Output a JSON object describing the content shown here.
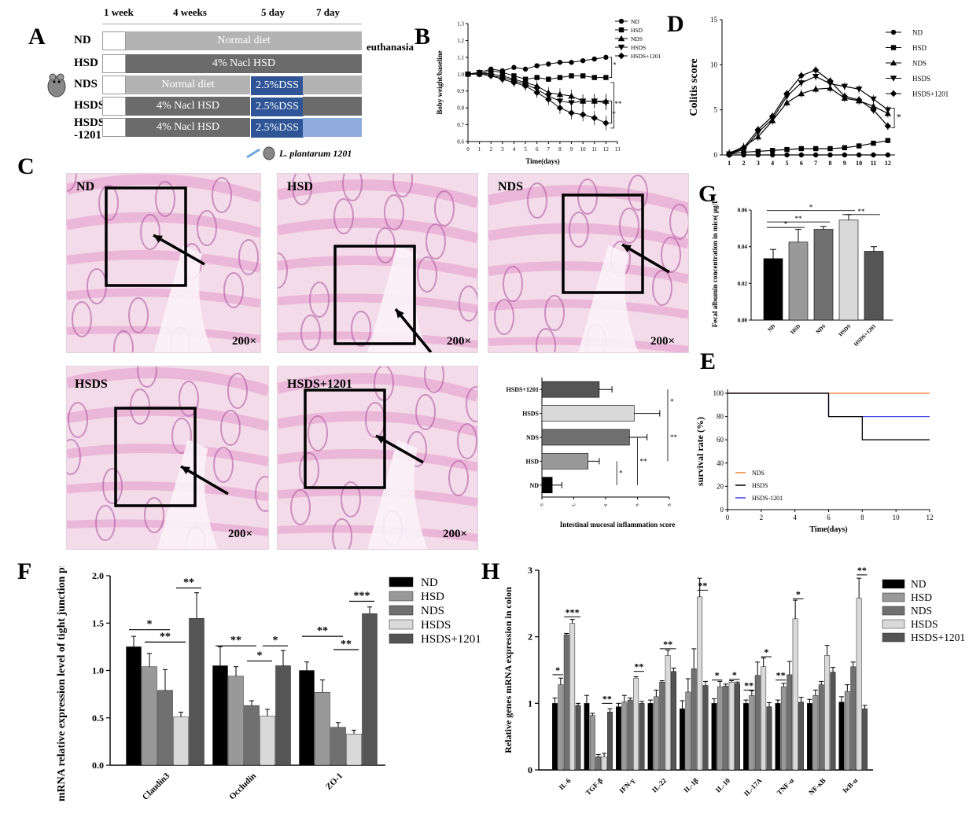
{
  "panels": {
    "A": "A",
    "B": "B",
    "C": "C",
    "D": "D",
    "E": "E",
    "F": "F",
    "G": "G",
    "H": "H"
  },
  "colors": {
    "light_gray": "#b3b3b3",
    "dark_gray": "#6b6b6b",
    "dss_blue": "#2f5597",
    "l_blue": "#8faadc",
    "tissue_pink": "#d98cc4",
    "tissue_bg": "#f3dbe9"
  },
  "panelA": {
    "phases": [
      "1 week",
      "4 weeks",
      "5 day",
      "7 day"
    ],
    "end_label": "euthanasia",
    "footnote": "L. plantarum 1201",
    "groups": [
      {
        "name": "ND",
        "bars": [
          {
            "text": "Normal diet",
            "color": "light"
          }
        ]
      },
      {
        "name": "HSD",
        "bars": [
          {
            "text": "4% Nacl HSD",
            "color": "dark"
          }
        ]
      },
      {
        "name": "NDS",
        "bars": [
          {
            "text": "Normal diet",
            "color": "light"
          },
          {
            "text": "2.5%DSS",
            "color": "dss"
          },
          {
            "text": "",
            "color": "light"
          }
        ]
      },
      {
        "name": "HSDS",
        "bars": [
          {
            "text": "4% Nacl HSD",
            "color": "dark"
          },
          {
            "text": "2.5%DSS",
            "color": "dss"
          },
          {
            "text": "",
            "color": "dark"
          }
        ]
      },
      {
        "name": "HSDS\n-1201",
        "bars": [
          {
            "text": "4% Nacl HSD",
            "color": "dark"
          },
          {
            "text": "2.5%DSS",
            "color": "dss"
          },
          {
            "text": "",
            "color": "lb"
          }
        ]
      }
    ]
  },
  "panelC": {
    "images": [
      {
        "label": "ND",
        "mag": "200×"
      },
      {
        "label": "HSD",
        "mag": "200×"
      },
      {
        "label": "NDS",
        "mag": "200×"
      },
      {
        "label": "HSDS",
        "mag": "200×"
      },
      {
        "label": "HSDS+1201",
        "mag": "200×"
      }
    ]
  },
  "chart_data": [
    {
      "id": "B",
      "type": "line",
      "xlabel": "Time(days)",
      "ylabel": "Boby weight/baseline",
      "xlim": [
        0,
        13
      ],
      "ylim": [
        0.6,
        1.3
      ],
      "xticks": [
        0,
        1,
        2,
        3,
        4,
        5,
        6,
        7,
        8,
        9,
        10,
        11,
        12,
        13
      ],
      "yticks": [
        "0.6",
        "0.7",
        "0.8",
        "0.9",
        "1.0",
        "1.1",
        "1.2",
        "1.3"
      ],
      "x": [
        0,
        1,
        2,
        3,
        4,
        5,
        6,
        7,
        8,
        9,
        10,
        11,
        12
      ],
      "series": [
        {
          "name": "ND",
          "values": [
            1.0,
            1.01,
            1.03,
            1.02,
            1.04,
            1.03,
            1.05,
            1.06,
            1.07,
            1.07,
            1.08,
            1.09,
            1.1
          ]
        },
        {
          "name": "HSD",
          "values": [
            1.0,
            1.0,
            1.02,
            1.01,
            0.99,
            0.97,
            0.98,
            0.97,
            0.98,
            0.99,
            0.99,
            0.98,
            0.98
          ]
        },
        {
          "name": "NDS",
          "values": [
            1.0,
            1.01,
            1.0,
            0.99,
            0.97,
            0.95,
            0.93,
            0.89,
            0.88,
            0.87,
            0.84,
            0.84,
            0.84
          ]
        },
        {
          "name": "HSDS",
          "values": [
            1.0,
            1.01,
            0.99,
            0.98,
            0.96,
            0.94,
            0.91,
            0.87,
            0.84,
            0.83,
            0.84,
            0.84,
            0.83
          ]
        },
        {
          "name": "HSDS+1201",
          "values": [
            1.0,
            1.0,
            0.99,
            0.97,
            0.95,
            0.93,
            0.89,
            0.85,
            0.8,
            0.77,
            0.76,
            0.74,
            0.71
          ]
        }
      ],
      "annotations": [
        "*",
        "**",
        "*"
      ],
      "legend": "top-right"
    },
    {
      "id": "D",
      "type": "line",
      "xlabel": "",
      "ylabel": "Colitis score",
      "xlim": [
        0.5,
        12.5
      ],
      "ylim": [
        0,
        15
      ],
      "xticks": [
        "1",
        "2",
        "3",
        "4",
        "5",
        "6",
        "7",
        "8",
        "9",
        "10",
        "11",
        "12"
      ],
      "yticks": [
        "0",
        "5",
        "10",
        "15"
      ],
      "x": [
        1,
        2,
        3,
        4,
        5,
        6,
        7,
        8,
        9,
        10,
        11,
        12
      ],
      "series": [
        {
          "name": "ND",
          "values": [
            0,
            0,
            0,
            0,
            0,
            0,
            0,
            0,
            0,
            0,
            0,
            0
          ]
        },
        {
          "name": "HSD",
          "values": [
            0.1,
            0.3,
            0.4,
            0.5,
            0.6,
            0.7,
            0.7,
            0.7,
            0.8,
            1.0,
            1.3,
            1.6
          ]
        },
        {
          "name": "NDS",
          "values": [
            0.2,
            0.9,
            2.0,
            3.8,
            5.8,
            6.8,
            7.3,
            7.4,
            6.3,
            6.0,
            5.4,
            4.6
          ]
        },
        {
          "name": "HSDS",
          "values": [
            0.1,
            0.6,
            2.5,
            4.0,
            6.5,
            8.0,
            8.7,
            7.9,
            7.6,
            7.3,
            6.2,
            5.0
          ]
        },
        {
          "name": "HSDS+1201",
          "values": [
            0.1,
            0.8,
            2.8,
            4.3,
            6.8,
            8.8,
            9.4,
            8.2,
            6.5,
            6.1,
            5.0,
            3.2
          ]
        }
      ],
      "annotations": [
        "*"
      ],
      "legend": "top-right"
    },
    {
      "id": "G",
      "type": "bar",
      "ylabel": "Fecal albumin concentration in mice( μg/L)",
      "ylim": [
        0,
        0.06
      ],
      "yticks": [
        "0.00",
        "0.02",
        "0.04",
        "0.06"
      ],
      "categories": [
        "ND",
        "HSD",
        "NDS",
        "HSDS",
        "HSDS+1201"
      ],
      "values": [
        0.0335,
        0.0425,
        0.0495,
        0.0545,
        0.0375
      ],
      "errors": [
        0.005,
        0.007,
        0.0015,
        0.003,
        0.0025
      ],
      "annotations": [
        "*",
        "**",
        "*",
        "**"
      ]
    },
    {
      "id": "C_score",
      "type": "bar",
      "orientation": "horizontal",
      "xlabel": "Intestinal mucosal inflammation score",
      "xlim": [
        0,
        8
      ],
      "xticks": [
        "0",
        "2",
        "4",
        "6",
        "8"
      ],
      "categories": [
        "HSDS+1201",
        "HSDS",
        "NDS",
        "HSD",
        "ND"
      ],
      "values": [
        3.6,
        5.8,
        5.5,
        2.9,
        0.65
      ],
      "errors": [
        0.8,
        1.6,
        1.1,
        0.7,
        0.6
      ],
      "annotations": [
        "*",
        "**",
        "**",
        "*"
      ]
    },
    {
      "id": "E",
      "type": "line",
      "step": true,
      "xlabel": "Time(days)",
      "ylabel": "survival rate (%)",
      "xlim": [
        0,
        12
      ],
      "ylim": [
        0,
        100
      ],
      "xticks": [
        "0",
        "2",
        "4",
        "6",
        "8",
        "10",
        "12"
      ],
      "yticks": [
        "0",
        "20",
        "40",
        "60",
        "80",
        "100"
      ],
      "series": [
        {
          "name": "NDS",
          "color": "#f07f2f",
          "points": [
            [
              0,
              100
            ],
            [
              12,
              100
            ]
          ]
        },
        {
          "name": "HSDS",
          "color": "#000000",
          "points": [
            [
              0,
              100
            ],
            [
              6,
              100
            ],
            [
              6,
              80
            ],
            [
              8,
              80
            ],
            [
              8,
              60
            ],
            [
              12,
              60
            ]
          ]
        },
        {
          "name": "HSDS-1201",
          "color": "#4040e0",
          "points": [
            [
              0,
              100
            ],
            [
              6,
              100
            ],
            [
              6,
              80
            ],
            [
              12,
              80
            ]
          ]
        }
      ],
      "legend": "bottom-left"
    },
    {
      "id": "F",
      "type": "bar",
      "ylabel": "mRNA relative expression level of tight junction protein",
      "ylim": [
        0,
        2.0
      ],
      "yticks": [
        "0.0",
        "0.5",
        "1.0",
        "1.5",
        "2.0"
      ],
      "categories": [
        "Claudin3",
        "Occludin",
        "ZO-1"
      ],
      "series": [
        {
          "name": "ND",
          "color": "#000000",
          "values": [
            1.25,
            1.05,
            1.0
          ],
          "errors": [
            0.11,
            0.2,
            0.09
          ]
        },
        {
          "name": "HSD",
          "color": "#999999",
          "values": [
            1.04,
            0.94,
            0.77
          ],
          "errors": [
            0.14,
            0.1,
            0.13
          ]
        },
        {
          "name": "NDS",
          "color": "#707070",
          "values": [
            0.79,
            0.63,
            0.4
          ],
          "errors": [
            0.22,
            0.05,
            0.05
          ]
        },
        {
          "name": "HSDS",
          "color": "#d9d9d9",
          "values": [
            0.51,
            0.52,
            0.33
          ],
          "errors": [
            0.05,
            0.07,
            0.04
          ]
        },
        {
          "name": "HSDS+1201",
          "color": "#555555",
          "values": [
            1.55,
            1.05,
            1.6
          ],
          "errors": [
            0.27,
            0.16,
            0.07
          ]
        }
      ],
      "annotations": [
        "*",
        "**",
        "**",
        "*",
        "*",
        "**",
        "**",
        "**",
        "***"
      ],
      "legend": "top-right"
    },
    {
      "id": "H",
      "type": "bar",
      "ylabel": "Relative genes mRNA expression in colon",
      "ylim": [
        0,
        3
      ],
      "yticks": [
        "0",
        "1",
        "2",
        "3"
      ],
      "categories": [
        "IL-6",
        "TGF-β",
        "IFN-γ",
        "IL-22",
        "IL-1β",
        "IL-10",
        "IL-17A",
        "TNF-α",
        "NF-κB",
        "IκB-α"
      ],
      "series": [
        {
          "name": "ND",
          "color": "#000000",
          "values": [
            1.0,
            1.0,
            0.95,
            1.0,
            0.92,
            1.0,
            1.0,
            1.0,
            1.0,
            1.02
          ],
          "errors": [
            0.08,
            0.12,
            0.05,
            0.05,
            0.12,
            0.07,
            0.05,
            0.05,
            0.06,
            0.08
          ]
        },
        {
          "name": "HSD",
          "color": "#999999",
          "values": [
            1.28,
            0.82,
            1.02,
            1.1,
            1.17,
            1.25,
            1.12,
            1.25,
            1.12,
            1.18
          ],
          "errors": [
            0.1,
            0.03,
            0.1,
            0.1,
            0.2,
            0.08,
            0.07,
            0.05,
            0.08,
            0.1
          ]
        },
        {
          "name": "NDS",
          "color": "#707070",
          "values": [
            2.03,
            0.2,
            1.05,
            1.32,
            1.52,
            1.26,
            1.42,
            1.43,
            1.28,
            1.55
          ],
          "errors": [
            0.02,
            0.03,
            0.03,
            0.02,
            0.3,
            0.03,
            0.2,
            0.2,
            0.05,
            0.07
          ]
        },
        {
          "name": "HSDS",
          "color": "#d9d9d9",
          "values": [
            2.2,
            0.2,
            1.38,
            1.72,
            2.6,
            1.32,
            1.55,
            2.27,
            1.72,
            2.58
          ],
          "errors": [
            0.06,
            0.05,
            0.02,
            0.08,
            0.28,
            0.02,
            0.13,
            0.28,
            0.15,
            0.3
          ]
        },
        {
          "name": "HSDS+1201",
          "color": "#555555",
          "values": [
            0.97,
            0.87,
            1.0,
            1.48,
            1.27,
            1.3,
            0.95,
            1.02,
            1.47,
            0.92
          ],
          "errors": [
            0.03,
            0.05,
            0.03,
            0.05,
            0.06,
            0.02,
            0.06,
            0.07,
            0.07,
            0.05
          ]
        }
      ],
      "annotations": [
        "*",
        "***",
        "**",
        "**",
        "**",
        "**",
        "*",
        "*",
        "*",
        "**",
        "**",
        "*",
        "**"
      ],
      "legend": "top-right"
    }
  ]
}
